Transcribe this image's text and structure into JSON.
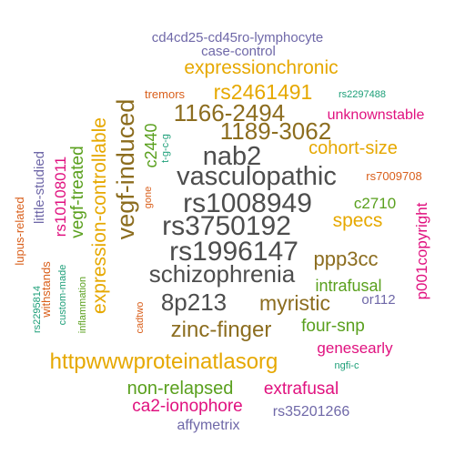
{
  "colors": {
    "gray": "#4d4d4d",
    "brown": "#8c6d1f",
    "gold": "#e6a800",
    "green": "#5aa01e",
    "magenta": "#e0117f",
    "purple": "#6f68a8",
    "orange": "#d95f1b",
    "teal": "#1b9e77"
  },
  "words": [
    {
      "text": "cd4cd25-cd45ro-lymphocyte",
      "color": "purple"
    },
    {
      "text": "case-control",
      "color": "purple"
    },
    {
      "text": "expressionchronic",
      "color": "gold"
    },
    {
      "text": "tremors",
      "color": "orange"
    },
    {
      "text": "rs2461491",
      "color": "gold"
    },
    {
      "text": "rs2297488",
      "color": "teal"
    },
    {
      "text": "1166-2494",
      "color": "brown"
    },
    {
      "text": "unknownstable",
      "color": "magenta"
    },
    {
      "text": "1189-3062",
      "color": "brown"
    },
    {
      "text": "c2440",
      "color": "green"
    },
    {
      "text": "t-g-c-g",
      "color": "teal"
    },
    {
      "text": "cohort-size",
      "color": "gold"
    },
    {
      "text": "nab2",
      "color": "gray"
    },
    {
      "text": "expression-controllable",
      "color": "gold"
    },
    {
      "text": "vegf-induced",
      "color": "brown"
    },
    {
      "text": "vasculopathic",
      "color": "gray"
    },
    {
      "text": "rs7009708",
      "color": "orange"
    },
    {
      "text": "gone",
      "color": "orange"
    },
    {
      "text": "rs1008949",
      "color": "gray"
    },
    {
      "text": "c2710",
      "color": "green"
    },
    {
      "text": "little-studied",
      "color": "purple"
    },
    {
      "text": "rs10108011",
      "color": "magenta"
    },
    {
      "text": "vegf-treated",
      "color": "green"
    },
    {
      "text": "specs",
      "color": "gold"
    },
    {
      "text": "p001copyright",
      "color": "magenta"
    },
    {
      "text": "rs3750192",
      "color": "gray"
    },
    {
      "text": "lupus-related",
      "color": "orange"
    },
    {
      "text": "rs1996147",
      "color": "gray"
    },
    {
      "text": "ppp3cc",
      "color": "brown"
    },
    {
      "text": "withstands",
      "color": "orange"
    },
    {
      "text": "custom-made",
      "color": "teal"
    },
    {
      "text": "rs2295814",
      "color": "teal"
    },
    {
      "text": "inflammation",
      "color": "green"
    },
    {
      "text": "schizophrenia",
      "color": "gray"
    },
    {
      "text": "intrafusal",
      "color": "green"
    },
    {
      "text": "8p213",
      "color": "gray"
    },
    {
      "text": "myristic",
      "color": "brown"
    },
    {
      "text": "or112",
      "color": "purple"
    },
    {
      "text": "cadtwo",
      "color": "orange"
    },
    {
      "text": "four-snp",
      "color": "green"
    },
    {
      "text": "zinc-finger",
      "color": "brown"
    },
    {
      "text": "genesearly",
      "color": "magenta"
    },
    {
      "text": "httpwwwproteinatlasorg",
      "color": "gold"
    },
    {
      "text": "ngfi-c",
      "color": "teal"
    },
    {
      "text": "non-relapsed",
      "color": "green"
    },
    {
      "text": "extrafusal",
      "color": "magenta"
    },
    {
      "text": "ca2-ionophore",
      "color": "magenta"
    },
    {
      "text": "rs35201266",
      "color": "purple"
    },
    {
      "text": "affymetrix",
      "color": "purple"
    }
  ]
}
